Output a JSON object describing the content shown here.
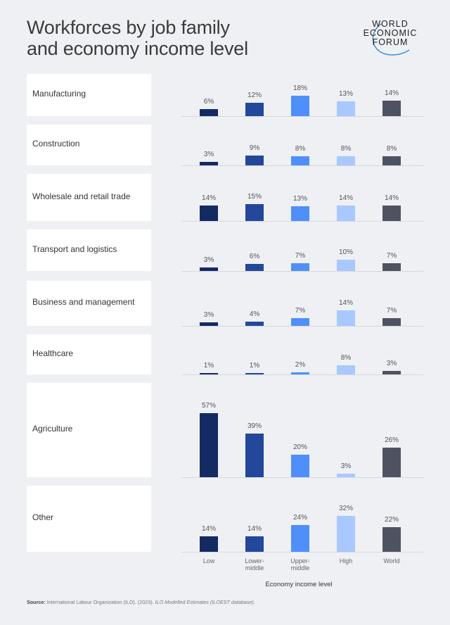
{
  "header": {
    "title_line1": "Workforces by job family",
    "title_line2": "and economy income level",
    "logo": {
      "line1": "WORLD",
      "line2": "ECONOMIC",
      "line3": "FORUM"
    }
  },
  "axis": {
    "x_title": "Economy income level",
    "categories": [
      {
        "line1": "Low",
        "line2": ""
      },
      {
        "line1": "Lower-",
        "line2": "middle"
      },
      {
        "line1": "Upper-",
        "line2": "middle"
      },
      {
        "line1": "High",
        "line2": ""
      },
      {
        "line1": "World",
        "line2": ""
      }
    ]
  },
  "colors": {
    "low": "#142a63",
    "lower_middle": "#23489a",
    "upper_middle": "#4f8ffa",
    "high": "#a8c8ff",
    "world": "#4f5261"
  },
  "source": {
    "label": "Source:",
    "text": " International Labour Organization (ILO). (2023). ",
    "italic": "ILO Modelled Estimates (ILOEST database)",
    "end": "."
  },
  "chart_data": {
    "type": "bar",
    "title": "Workforces by job family and economy income level",
    "xlabel": "Economy income level",
    "ylabel": "",
    "unit": "%",
    "categories": [
      "Low",
      "Lower-middle",
      "Upper-middle",
      "High",
      "World"
    ],
    "layout": "small multiples, one bar group per job family row",
    "series": [
      {
        "name": "Manufacturing",
        "values": [
          6,
          12,
          18,
          13,
          14
        ]
      },
      {
        "name": "Construction",
        "values": [
          3,
          9,
          8,
          8,
          8
        ]
      },
      {
        "name": "Wholesale and retail trade",
        "values": [
          14,
          15,
          13,
          14,
          14
        ]
      },
      {
        "name": "Transport and logistics",
        "values": [
          3,
          6,
          7,
          10,
          7
        ]
      },
      {
        "name": "Business and management",
        "values": [
          3,
          4,
          7,
          14,
          7
        ]
      },
      {
        "name": "Healthcare",
        "values": [
          1,
          1,
          2,
          8,
          3
        ]
      },
      {
        "name": "Agriculture",
        "values": [
          57,
          39,
          20,
          3,
          26
        ]
      },
      {
        "name": "Other",
        "values": [
          14,
          14,
          24,
          32,
          22
        ]
      }
    ],
    "grid": false,
    "legend": "none (categories labelled under final row)"
  },
  "rows": [
    {
      "label": "Manufacturing",
      "values": [
        "6%",
        "12%",
        "18%",
        "13%",
        "14%"
      ]
    },
    {
      "label": "Construction",
      "values": [
        "3%",
        "9%",
        "8%",
        "8%",
        "8%"
      ]
    },
    {
      "label": "Wholesale and retail trade",
      "values": [
        "14%",
        "15%",
        "13%",
        "14%",
        "14%"
      ]
    },
    {
      "label": "Transport and logistics",
      "values": [
        "3%",
        "6%",
        "7%",
        "10%",
        "7%"
      ]
    },
    {
      "label": "Business and management",
      "values": [
        "3%",
        "4%",
        "7%",
        "14%",
        "7%"
      ]
    },
    {
      "label": "Healthcare",
      "values": [
        "1%",
        "1%",
        "2%",
        "8%",
        "3%"
      ]
    },
    {
      "label": "Agriculture",
      "values": [
        "57%",
        "39%",
        "20%",
        "3%",
        "26%"
      ]
    },
    {
      "label": "Other",
      "values": [
        "14%",
        "14%",
        "24%",
        "32%",
        "22%"
      ]
    }
  ]
}
